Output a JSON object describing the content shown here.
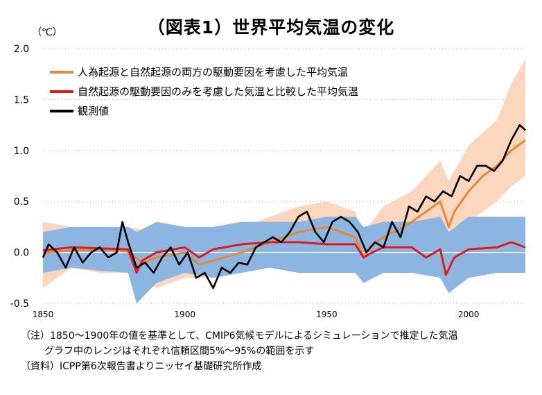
{
  "chart_data": {
    "type": "line",
    "title": "（図表1）世界平均気温の変化",
    "ylabel": "（℃）",
    "xlim": [
      1850,
      2020
    ],
    "ylim": [
      -0.5,
      2.0
    ],
    "yticks": [
      -0.5,
      0.0,
      0.5,
      1.0,
      1.5,
      2.0
    ],
    "xticks": [
      1850,
      1900,
      1950,
      2000
    ],
    "grid": "horizontal dotted",
    "legend_position": "top-left",
    "colors": {
      "human_natural": "#e8873a",
      "human_natural_range": "#f9d6bd",
      "natural": "#e01a1a",
      "natural_range": "#8db5e2",
      "observed": "#000000"
    },
    "series": [
      {
        "name": "人為起源と自然起源の両方の駆動要因を考慮した平均気温",
        "x": [
          1850,
          1860,
          1870,
          1880,
          1885,
          1890,
          1900,
          1905,
          1910,
          1920,
          1930,
          1940,
          1950,
          1955,
          1960,
          1963,
          1965,
          1970,
          1975,
          1980,
          1985,
          1990,
          1993,
          1995,
          2000,
          2005,
          2010,
          2015,
          2020
        ],
        "values": [
          0.0,
          0.02,
          0.03,
          0.01,
          -0.1,
          -0.05,
          0.0,
          -0.12,
          -0.08,
          0.0,
          0.1,
          0.2,
          0.25,
          0.2,
          0.15,
          -0.05,
          0.05,
          0.15,
          0.22,
          0.3,
          0.4,
          0.5,
          0.25,
          0.4,
          0.6,
          0.75,
          0.85,
          1.0,
          1.1
        ]
      },
      {
        "name": "自然起源の駆動要因のみを考慮した気温と比較した平均気温",
        "x": [
          1850,
          1860,
          1870,
          1880,
          1883,
          1885,
          1890,
          1900,
          1905,
          1910,
          1920,
          1930,
          1940,
          1950,
          1960,
          1963,
          1966,
          1970,
          1980,
          1985,
          1990,
          1992,
          1995,
          2000,
          2010,
          2015,
          2020
        ],
        "values": [
          0.02,
          0.05,
          0.04,
          0.03,
          -0.2,
          -0.08,
          0.0,
          0.05,
          -0.05,
          0.03,
          0.08,
          0.1,
          0.1,
          0.08,
          0.08,
          -0.05,
          0.0,
          0.05,
          0.05,
          -0.05,
          0.03,
          -0.22,
          -0.05,
          0.03,
          0.05,
          0.1,
          0.05
        ]
      },
      {
        "name": "観測値",
        "x": [
          1850,
          1852,
          1855,
          1858,
          1861,
          1864,
          1867,
          1870,
          1873,
          1876,
          1878,
          1880,
          1883,
          1886,
          1889,
          1892,
          1895,
          1898,
          1901,
          1904,
          1907,
          1910,
          1913,
          1916,
          1919,
          1922,
          1925,
          1928,
          1931,
          1934,
          1937,
          1940,
          1943,
          1946,
          1949,
          1952,
          1955,
          1958,
          1961,
          1964,
          1967,
          1970,
          1973,
          1976,
          1979,
          1982,
          1985,
          1988,
          1991,
          1994,
          1997,
          2000,
          2003,
          2006,
          2009,
          2012,
          2015,
          2018,
          2020
        ],
        "values": [
          -0.05,
          0.08,
          0.0,
          -0.15,
          0.05,
          -0.1,
          0.0,
          0.05,
          -0.05,
          0.0,
          0.3,
          0.1,
          -0.15,
          -0.1,
          -0.2,
          -0.05,
          0.05,
          -0.12,
          0.0,
          -0.25,
          -0.2,
          -0.35,
          -0.15,
          -0.2,
          -0.1,
          -0.12,
          0.05,
          0.1,
          0.15,
          0.1,
          0.2,
          0.35,
          0.4,
          0.2,
          0.1,
          0.3,
          0.35,
          0.3,
          0.2,
          0.0,
          0.1,
          0.05,
          0.3,
          0.15,
          0.45,
          0.4,
          0.55,
          0.5,
          0.6,
          0.55,
          0.75,
          0.7,
          0.85,
          0.85,
          0.8,
          0.9,
          1.1,
          1.25,
          1.2
        ]
      }
    ],
    "range_human_natural": {
      "x": [
        1850,
        1860,
        1870,
        1880,
        1890,
        1900,
        1910,
        1920,
        1930,
        1940,
        1950,
        1960,
        1963,
        1970,
        1980,
        1990,
        1993,
        2000,
        2010,
        2015,
        2020
      ],
      "low": [
        -0.35,
        -0.15,
        -0.2,
        -0.2,
        -0.35,
        -0.25,
        -0.25,
        -0.2,
        -0.1,
        0.0,
        0.0,
        -0.05,
        -0.3,
        -0.05,
        0.05,
        0.15,
        -0.05,
        0.3,
        0.5,
        0.65,
        0.75
      ],
      "high": [
        0.3,
        0.25,
        0.25,
        0.25,
        0.2,
        0.25,
        0.2,
        0.25,
        0.35,
        0.45,
        0.5,
        0.4,
        0.2,
        0.45,
        0.6,
        0.9,
        0.7,
        1.05,
        1.3,
        1.65,
        1.9
      ]
    },
    "range_natural": {
      "x": [
        1850,
        1860,
        1870,
        1880,
        1883,
        1890,
        1900,
        1910,
        1920,
        1930,
        1940,
        1950,
        1960,
        1963,
        1970,
        1980,
        1990,
        1993,
        2000,
        2010,
        2020
      ],
      "low": [
        -0.2,
        -0.15,
        -0.18,
        -0.2,
        -0.5,
        -0.3,
        -0.2,
        -0.25,
        -0.2,
        -0.15,
        -0.2,
        -0.2,
        -0.2,
        -0.3,
        -0.2,
        -0.2,
        -0.25,
        -0.4,
        -0.25,
        -0.2,
        -0.2
      ],
      "high": [
        0.2,
        0.25,
        0.25,
        0.25,
        0.2,
        0.3,
        0.25,
        0.25,
        0.3,
        0.3,
        0.3,
        0.35,
        0.35,
        0.25,
        0.3,
        0.3,
        0.35,
        0.2,
        0.35,
        0.35,
        0.35
      ]
    }
  },
  "notes": {
    "note1": "（注）1850～1900年の値を基準として、CMIP6気候モデルによるシミュレーションで推定した気温",
    "note2": "グラフ中のレンジはそれぞれ信頼区間5%～95%の範囲を示す",
    "source": "（資料）ICPP第6次報告書よりニッセイ基礎研究所作成"
  }
}
